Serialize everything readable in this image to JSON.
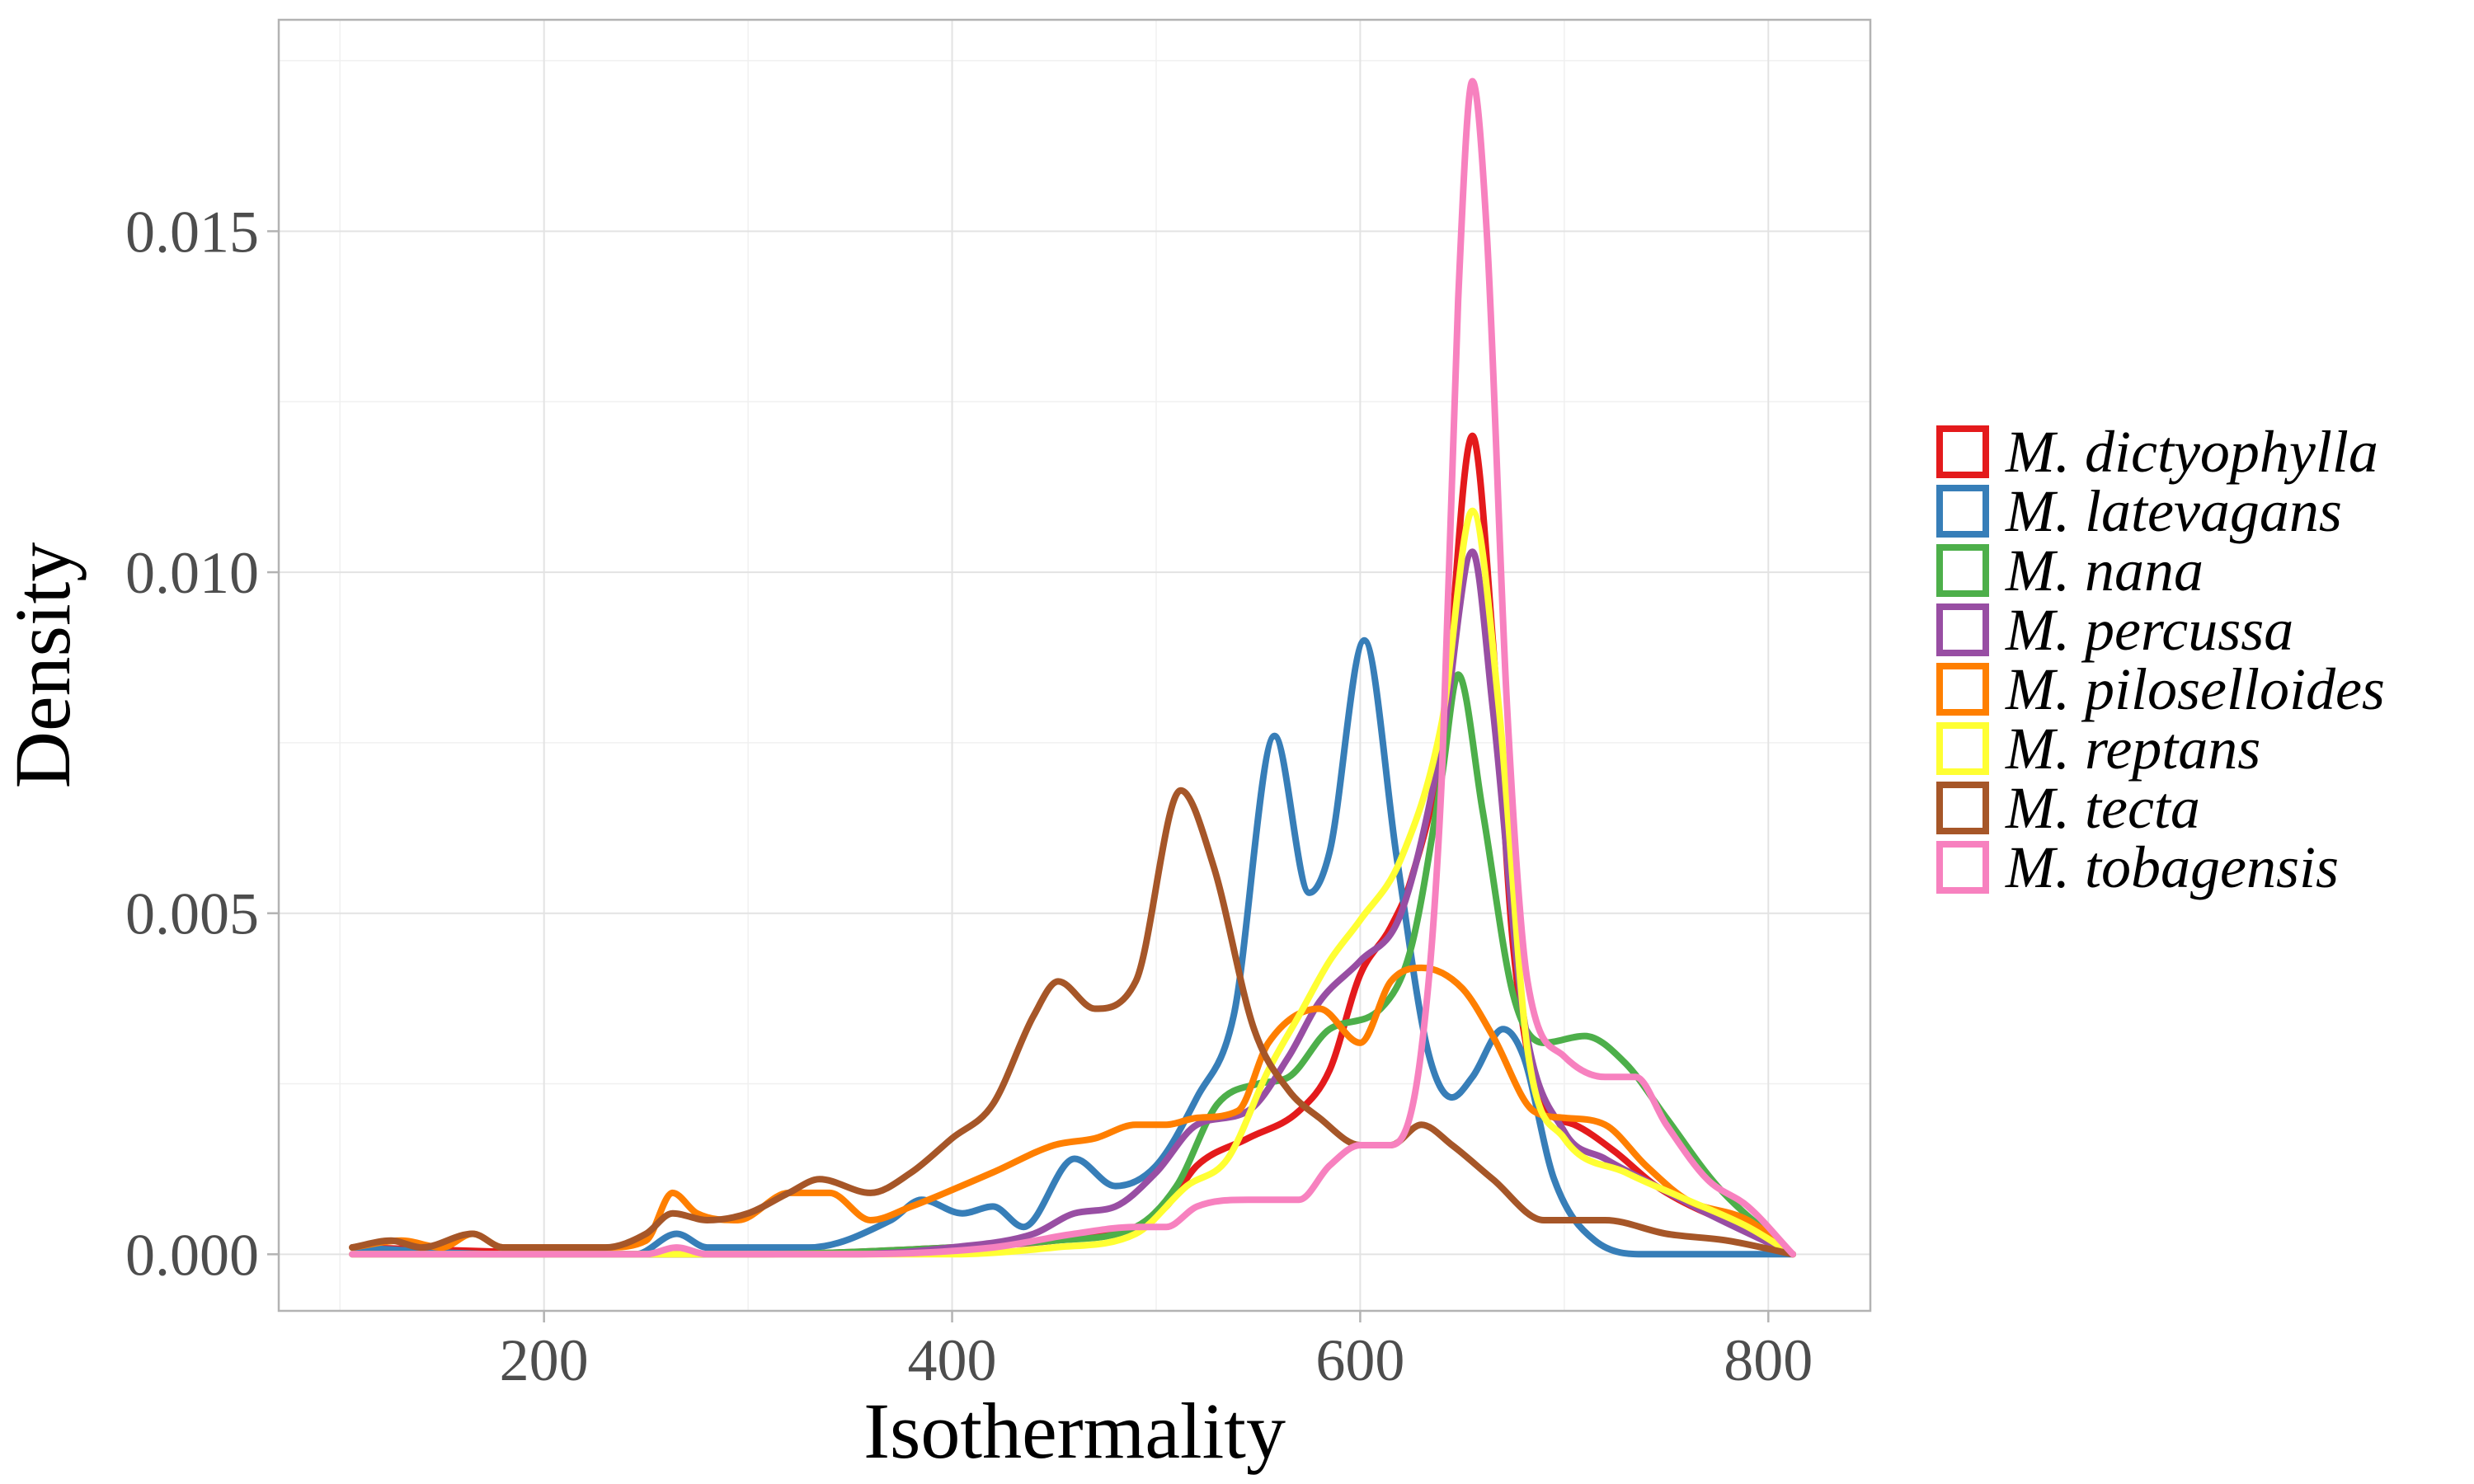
{
  "chart_data": {
    "type": "line",
    "xlabel": "Isothermality",
    "ylabel": "Density",
    "xlim": [
      70,
      850
    ],
    "ylim": [
      -0.00083,
      0.0181
    ],
    "xticks": [
      200,
      400,
      600,
      800
    ],
    "xtick_labels": [
      "200",
      "400",
      "600",
      "800"
    ],
    "yticks": [
      0.0,
      0.005,
      0.01,
      0.015
    ],
    "ytick_labels": [
      "0.000",
      "0.005",
      "0.010",
      "0.015"
    ],
    "grid": true,
    "legend": "right",
    "series": [
      {
        "name": "M. dictyophylla",
        "color": "#E41A1C",
        "points": [
          [
            106,
            0.0001
          ],
          [
            250,
            0.0
          ],
          [
            300,
            0.0
          ],
          [
            400,
            0.0001
          ],
          [
            450,
            0.0002
          ],
          [
            490,
            0.0004
          ],
          [
            505,
            0.0007
          ],
          [
            520,
            0.0013
          ],
          [
            545,
            0.0017
          ],
          [
            570,
            0.0021
          ],
          [
            585,
            0.0027
          ],
          [
            600,
            0.0041
          ],
          [
            615,
            0.0048
          ],
          [
            625,
            0.0055
          ],
          [
            640,
            0.0075
          ],
          [
            655,
            0.012
          ],
          [
            665,
            0.009
          ],
          [
            675,
            0.0045
          ],
          [
            690,
            0.0022
          ],
          [
            705,
            0.0019
          ],
          [
            725,
            0.0015
          ],
          [
            745,
            0.001
          ],
          [
            770,
            0.0006
          ],
          [
            790,
            0.0004
          ],
          [
            812,
            0.0
          ]
        ]
      },
      {
        "name": "M. latevagans",
        "color": "#377EB8",
        "points": [
          [
            106,
            0.0001
          ],
          [
            180,
            0.0
          ],
          [
            245,
            0.0
          ],
          [
            265,
            0.0003
          ],
          [
            280,
            0.0001
          ],
          [
            330,
            0.0001
          ],
          [
            370,
            0.0005
          ],
          [
            385,
            0.0008
          ],
          [
            405,
            0.0006
          ],
          [
            420,
            0.0007
          ],
          [
            435,
            0.0004
          ],
          [
            460,
            0.0014
          ],
          [
            480,
            0.001
          ],
          [
            500,
            0.0013
          ],
          [
            520,
            0.0023
          ],
          [
            538,
            0.0035
          ],
          [
            558,
            0.0076
          ],
          [
            575,
            0.0053
          ],
          [
            585,
            0.0059
          ],
          [
            602,
            0.009
          ],
          [
            618,
            0.0058
          ],
          [
            633,
            0.003
          ],
          [
            645,
            0.0023
          ],
          [
            655,
            0.0026
          ],
          [
            670,
            0.0033
          ],
          [
            680,
            0.0029
          ],
          [
            695,
            0.0011
          ],
          [
            715,
            0.0002
          ],
          [
            740,
            0.0
          ],
          [
            812,
            0.0
          ]
        ]
      },
      {
        "name": "M. nana",
        "color": "#4DAF4A",
        "points": [
          [
            106,
            0.0
          ],
          [
            250,
            0.0
          ],
          [
            300,
            0.0
          ],
          [
            400,
            0.0001
          ],
          [
            450,
            0.0002
          ],
          [
            490,
            0.0004
          ],
          [
            510,
            0.001
          ],
          [
            530,
            0.0022
          ],
          [
            550,
            0.0025
          ],
          [
            565,
            0.0026
          ],
          [
            585,
            0.0033
          ],
          [
            610,
            0.0036
          ],
          [
            625,
            0.0045
          ],
          [
            640,
            0.007
          ],
          [
            648,
            0.0085
          ],
          [
            660,
            0.0065
          ],
          [
            675,
            0.0038
          ],
          [
            690,
            0.0031
          ],
          [
            710,
            0.0032
          ],
          [
            730,
            0.0028
          ],
          [
            750,
            0.002
          ],
          [
            775,
            0.001
          ],
          [
            812,
            0.0
          ]
        ]
      },
      {
        "name": "M. percussa",
        "color": "#984EA3",
        "points": [
          [
            106,
            0.0
          ],
          [
            250,
            0.0
          ],
          [
            350,
            0.0
          ],
          [
            400,
            0.0001
          ],
          [
            440,
            0.0003
          ],
          [
            460,
            0.0006
          ],
          [
            480,
            0.0007
          ],
          [
            500,
            0.0012
          ],
          [
            520,
            0.0019
          ],
          [
            545,
            0.0021
          ],
          [
            565,
            0.0029
          ],
          [
            580,
            0.0037
          ],
          [
            600,
            0.0043
          ],
          [
            620,
            0.005
          ],
          [
            640,
            0.0075
          ],
          [
            655,
            0.0103
          ],
          [
            665,
            0.008
          ],
          [
            680,
            0.0035
          ],
          [
            700,
            0.0018
          ],
          [
            720,
            0.0014
          ],
          [
            745,
            0.001
          ],
          [
            770,
            0.0006
          ],
          [
            812,
            0.0
          ]
        ]
      },
      {
        "name": "M. piloselloides",
        "color": "#FF7F00",
        "points": [
          [
            106,
            0.0001
          ],
          [
            130,
            0.0002
          ],
          [
            150,
            0.0001
          ],
          [
            165,
            0.0003
          ],
          [
            180,
            0.0001
          ],
          [
            230,
            0.0001
          ],
          [
            250,
            0.0002
          ],
          [
            263,
            0.0009
          ],
          [
            275,
            0.0006
          ],
          [
            295,
            0.0005
          ],
          [
            320,
            0.0009
          ],
          [
            340,
            0.0009
          ],
          [
            360,
            0.0005
          ],
          [
            380,
            0.0007
          ],
          [
            420,
            0.0012
          ],
          [
            450,
            0.0016
          ],
          [
            470,
            0.0017
          ],
          [
            490,
            0.0019
          ],
          [
            505,
            0.0019
          ],
          [
            520,
            0.002
          ],
          [
            540,
            0.0021
          ],
          [
            555,
            0.0031
          ],
          [
            580,
            0.0036
          ],
          [
            600,
            0.0031
          ],
          [
            615,
            0.004
          ],
          [
            630,
            0.0042
          ],
          [
            650,
            0.0039
          ],
          [
            665,
            0.0032
          ],
          [
            685,
            0.0021
          ],
          [
            700,
            0.002
          ],
          [
            720,
            0.0019
          ],
          [
            740,
            0.0013
          ],
          [
            760,
            0.0008
          ],
          [
            790,
            0.0005
          ],
          [
            812,
            0.0
          ]
        ]
      },
      {
        "name": "M. reptans",
        "color": "#FFFF33",
        "points": [
          [
            106,
            0.0
          ],
          [
            250,
            0.0
          ],
          [
            350,
            0.0
          ],
          [
            400,
            0.0
          ],
          [
            450,
            0.0001
          ],
          [
            490,
            0.0003
          ],
          [
            515,
            0.001
          ],
          [
            535,
            0.0014
          ],
          [
            555,
            0.0027
          ],
          [
            570,
            0.0035
          ],
          [
            585,
            0.0043
          ],
          [
            600,
            0.0049
          ],
          [
            620,
            0.0058
          ],
          [
            640,
            0.0078
          ],
          [
            655,
            0.0109
          ],
          [
            668,
            0.008
          ],
          [
            682,
            0.003
          ],
          [
            700,
            0.0017
          ],
          [
            730,
            0.0012
          ],
          [
            760,
            0.0008
          ],
          [
            790,
            0.0004
          ],
          [
            812,
            0.0
          ]
        ]
      },
      {
        "name": "M. tecta",
        "color": "#A65628",
        "points": [
          [
            106,
            0.0001
          ],
          [
            125,
            0.0002
          ],
          [
            140,
            0.0001
          ],
          [
            165,
            0.0003
          ],
          [
            180,
            0.0001
          ],
          [
            230,
            0.0001
          ],
          [
            250,
            0.0003
          ],
          [
            263,
            0.0006
          ],
          [
            280,
            0.0005
          ],
          [
            300,
            0.0006
          ],
          [
            320,
            0.0009
          ],
          [
            335,
            0.0011
          ],
          [
            360,
            0.0009
          ],
          [
            380,
            0.0012
          ],
          [
            400,
            0.0017
          ],
          [
            420,
            0.0022
          ],
          [
            440,
            0.0035
          ],
          [
            452,
            0.004
          ],
          [
            470,
            0.0036
          ],
          [
            490,
            0.004
          ],
          [
            512,
            0.0068
          ],
          [
            528,
            0.0057
          ],
          [
            548,
            0.0033
          ],
          [
            565,
            0.0024
          ],
          [
            580,
            0.002
          ],
          [
            600,
            0.0016
          ],
          [
            615,
            0.0016
          ],
          [
            630,
            0.0019
          ],
          [
            645,
            0.0016
          ],
          [
            665,
            0.0011
          ],
          [
            690,
            0.0005
          ],
          [
            720,
            0.0005
          ],
          [
            750,
            0.0003
          ],
          [
            780,
            0.0002
          ],
          [
            812,
            0.0
          ]
        ]
      },
      {
        "name": "M. tobagensis",
        "color": "#F781BF",
        "points": [
          [
            106,
            0.0
          ],
          [
            250,
            0.0
          ],
          [
            265,
            0.0001
          ],
          [
            280,
            0.0
          ],
          [
            350,
            0.0
          ],
          [
            420,
            0.0001
          ],
          [
            460,
            0.0003
          ],
          [
            490,
            0.0004
          ],
          [
            505,
            0.0004
          ],
          [
            520,
            0.0007
          ],
          [
            545,
            0.0008
          ],
          [
            570,
            0.0008
          ],
          [
            585,
            0.0013
          ],
          [
            600,
            0.0016
          ],
          [
            615,
            0.0016
          ],
          [
            630,
            0.003
          ],
          [
            640,
            0.007
          ],
          [
            648,
            0.014
          ],
          [
            655,
            0.0172
          ],
          [
            662,
            0.015
          ],
          [
            672,
            0.008
          ],
          [
            682,
            0.004
          ],
          [
            700,
            0.0029
          ],
          [
            720,
            0.0026
          ],
          [
            735,
            0.0026
          ],
          [
            750,
            0.0019
          ],
          [
            770,
            0.0011
          ],
          [
            790,
            0.0007
          ],
          [
            812,
            0.0
          ]
        ]
      }
    ]
  }
}
